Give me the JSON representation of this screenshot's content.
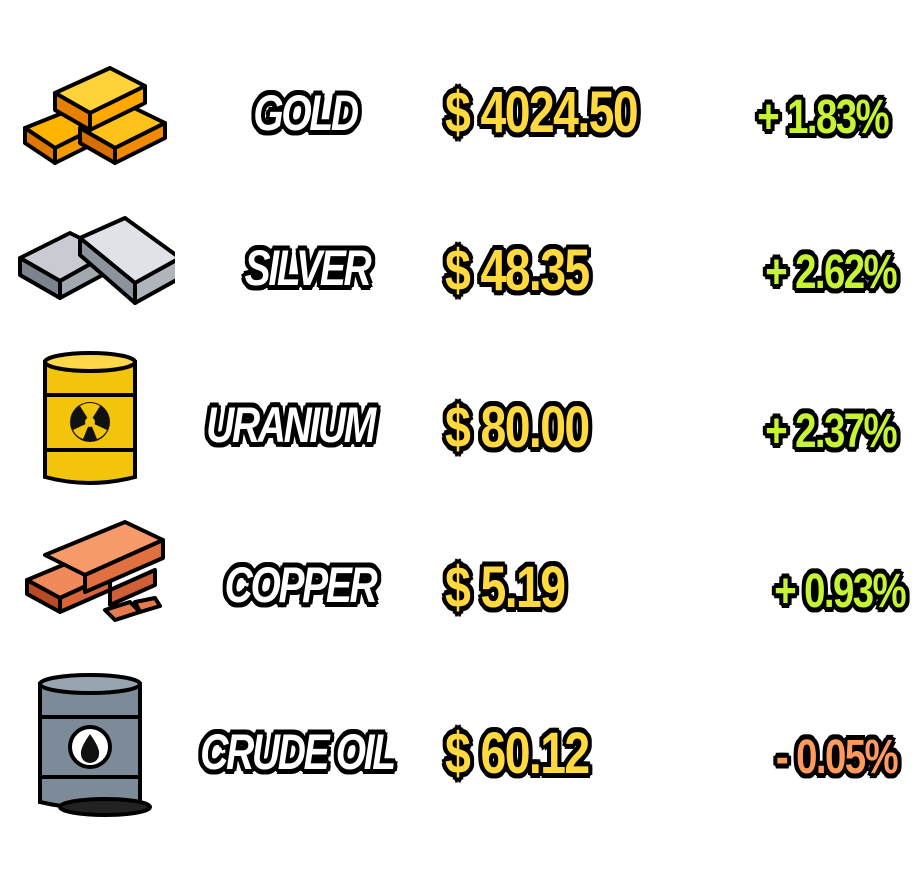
{
  "colors": {
    "price": "#ffd93d",
    "positive": "#c6f432",
    "negative": "#ff9a5e",
    "name": "#ffffff",
    "outline": "#000000"
  },
  "commodities": [
    {
      "name": "GOLD",
      "price": "$ 4024.50",
      "change": "+ 1.83%",
      "direction": "up",
      "icon": "gold-bars-icon"
    },
    {
      "name": "SILVER",
      "price": "$ 48.35",
      "change": "+ 2.62%",
      "direction": "up",
      "icon": "silver-bars-icon"
    },
    {
      "name": "URANIUM",
      "price": "$ 80.00",
      "change": "+ 2.37%",
      "direction": "up",
      "icon": "radioactive-barrel-icon"
    },
    {
      "name": "COPPER",
      "price": "$ 5.19",
      "change": "+ 0.93%",
      "direction": "up",
      "icon": "copper-bars-icon"
    },
    {
      "name": "CRUDE OIL",
      "price": "$ 60.12",
      "change": "- 0.05%",
      "direction": "down",
      "icon": "oil-barrel-icon"
    }
  ]
}
